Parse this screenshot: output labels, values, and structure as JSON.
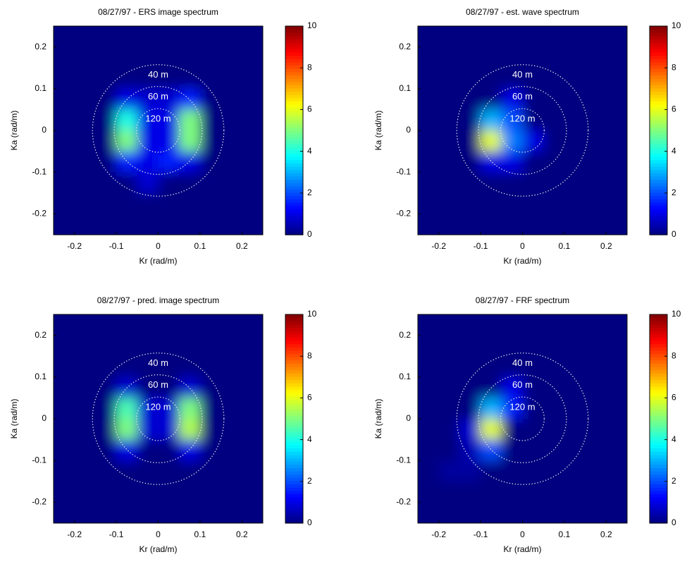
{
  "chart_data": [
    {
      "type": "heatmap",
      "title": "08/27/97 - ERS image spectrum",
      "xlabel": "Kr (rad/m)",
      "ylabel": "Ka (rad/m)",
      "xlim": [
        -0.25,
        0.25
      ],
      "ylim": [
        -0.25,
        0.25
      ],
      "xticks": [
        -0.2,
        -0.1,
        0,
        0.1,
        0.2
      ],
      "yticks": [
        -0.2,
        -0.1,
        0,
        0.1,
        0.2
      ],
      "zlim": [
        0,
        10
      ],
      "zticks": [
        0,
        2,
        4,
        6,
        8,
        10
      ],
      "colormap": "jet",
      "circles": [
        {
          "label": "40 m",
          "radius": 0.157
        },
        {
          "label": "60 m",
          "radius": 0.105
        },
        {
          "label": "120 m",
          "radius": 0.052
        }
      ],
      "z": [
        [
          0,
          0,
          0,
          0,
          0,
          0,
          0,
          0,
          0,
          0
        ],
        [
          0,
          0,
          0,
          0,
          0,
          0,
          0,
          0,
          0,
          0
        ],
        [
          0,
          0,
          0,
          0,
          0,
          0,
          0,
          0,
          0,
          0
        ],
        [
          0,
          0,
          0,
          1,
          0.8,
          0.8,
          1.5,
          0,
          0,
          0
        ],
        [
          0,
          0,
          0,
          4,
          1,
          1,
          5,
          0,
          0,
          0
        ],
        [
          0,
          0,
          0,
          5,
          1,
          1,
          5,
          0,
          0,
          0
        ],
        [
          0,
          0,
          0,
          1.5,
          1,
          1.5,
          1,
          0,
          0,
          0
        ],
        [
          0,
          0,
          0,
          0,
          0.8,
          0,
          0,
          0,
          0,
          0
        ],
        [
          0,
          0,
          0,
          0,
          0,
          0,
          0,
          0,
          0,
          0
        ],
        [
          0,
          0,
          0,
          0,
          0,
          0,
          0,
          0,
          0,
          0
        ]
      ]
    },
    {
      "type": "heatmap",
      "title": "08/27/97 - est. wave spectrum",
      "xlabel": "Kr (rad/m)",
      "ylabel": "Ka (rad/m)",
      "xlim": [
        -0.25,
        0.25
      ],
      "ylim": [
        -0.25,
        0.25
      ],
      "xticks": [
        -0.2,
        -0.1,
        0,
        0.1,
        0.2
      ],
      "yticks": [
        -0.2,
        -0.1,
        0,
        0.1,
        0.2
      ],
      "zlim": [
        0,
        10
      ],
      "zticks": [
        0,
        2,
        4,
        6,
        8,
        10
      ],
      "colormap": "jet",
      "circles": [
        {
          "label": "40 m",
          "radius": 0.157
        },
        {
          "label": "60 m",
          "radius": 0.105
        },
        {
          "label": "120 m",
          "radius": 0.052
        }
      ],
      "z": [
        [
          0,
          0,
          0,
          0,
          0,
          0,
          0,
          0,
          0,
          0
        ],
        [
          0,
          0,
          0,
          0,
          0,
          0,
          0,
          0,
          0,
          0
        ],
        [
          0,
          0,
          0,
          0,
          0,
          0,
          0,
          0,
          0,
          0
        ],
        [
          0,
          0,
          0,
          0,
          1,
          0,
          0,
          0,
          0,
          0
        ],
        [
          0,
          0,
          0,
          3,
          2,
          0,
          0,
          0,
          0,
          0
        ],
        [
          0,
          0,
          0,
          6,
          2.5,
          1,
          0,
          0,
          0,
          0
        ],
        [
          0,
          0,
          0,
          1,
          1,
          0,
          0,
          0,
          0,
          0
        ],
        [
          0,
          0,
          0,
          0,
          0,
          0,
          0,
          0,
          0,
          0
        ],
        [
          0,
          0,
          0,
          0,
          0,
          0,
          0,
          0,
          0,
          0
        ],
        [
          0,
          0,
          0,
          0,
          0,
          0,
          0,
          0,
          0,
          0
        ]
      ]
    },
    {
      "type": "heatmap",
      "title": "08/27/97 - pred. image spectrum",
      "xlabel": "Kr (rad/m)",
      "ylabel": "Ka (rad/m)",
      "xlim": [
        -0.25,
        0.25
      ],
      "ylim": [
        -0.25,
        0.25
      ],
      "xticks": [
        -0.2,
        -0.1,
        0,
        0.1,
        0.2
      ],
      "yticks": [
        -0.2,
        -0.1,
        0,
        0.1,
        0.2
      ],
      "zlim": [
        0,
        10
      ],
      "zticks": [
        0,
        2,
        4,
        6,
        8,
        10
      ],
      "colormap": "jet",
      "circles": [
        {
          "label": "40 m",
          "radius": 0.157
        },
        {
          "label": "60 m",
          "radius": 0.105
        },
        {
          "label": "120 m",
          "radius": 0.052
        }
      ],
      "z": [
        [
          0,
          0,
          0,
          0,
          0,
          0,
          0,
          0,
          0,
          0
        ],
        [
          0,
          0,
          0,
          0,
          0,
          0,
          0,
          0,
          0,
          0
        ],
        [
          0,
          0,
          0,
          0,
          0,
          0,
          0,
          0,
          0,
          0
        ],
        [
          0,
          0,
          0,
          0.8,
          0,
          0,
          0.8,
          0,
          0,
          0
        ],
        [
          0,
          0,
          0,
          4.5,
          0.8,
          0.8,
          5,
          0,
          0,
          0
        ],
        [
          0,
          0,
          0,
          5,
          0.8,
          0.8,
          5.5,
          0,
          0,
          0
        ],
        [
          0,
          0,
          0,
          1,
          0,
          0,
          1,
          0,
          0,
          0
        ],
        [
          0,
          0,
          0,
          0,
          0,
          0,
          0,
          0,
          0,
          0
        ],
        [
          0,
          0,
          0,
          0,
          0,
          0,
          0,
          0,
          0,
          0
        ],
        [
          0,
          0,
          0,
          0,
          0,
          0,
          0,
          0,
          0,
          0
        ]
      ]
    },
    {
      "type": "heatmap",
      "title": "08/27/97 - FRF spectrum",
      "xlabel": "Kr (rad/m)",
      "ylabel": "Ka (rad/m)",
      "xlim": [
        -0.25,
        0.25
      ],
      "ylim": [
        -0.25,
        0.25
      ],
      "xticks": [
        -0.2,
        -0.1,
        0,
        0.1,
        0.2
      ],
      "yticks": [
        -0.2,
        -0.1,
        0,
        0.1,
        0.2
      ],
      "zlim": [
        0,
        10
      ],
      "zticks": [
        0,
        2,
        4,
        6,
        8,
        10
      ],
      "colormap": "jet",
      "circles": [
        {
          "label": "40 m",
          "radius": 0.157
        },
        {
          "label": "60 m",
          "radius": 0.105
        },
        {
          "label": "120 m",
          "radius": 0.052
        }
      ],
      "z": [
        [
          0,
          0,
          0,
          0,
          0,
          0,
          0,
          0,
          0,
          0
        ],
        [
          0,
          0,
          0,
          0,
          0,
          0,
          0,
          0,
          0,
          0
        ],
        [
          0,
          0,
          0,
          0,
          0,
          0,
          0,
          0,
          0,
          0
        ],
        [
          0,
          0,
          0,
          0,
          1,
          0,
          0,
          0,
          0,
          0
        ],
        [
          0,
          0,
          0,
          3,
          1.5,
          0,
          0,
          0,
          0,
          0
        ],
        [
          0,
          0,
          0.8,
          6,
          0,
          0,
          0,
          0,
          0,
          0
        ],
        [
          0,
          0,
          0.5,
          2,
          0,
          0,
          0,
          0,
          0,
          0
        ],
        [
          0,
          0.3,
          0.3,
          0,
          0,
          0,
          0,
          0,
          0,
          0
        ],
        [
          0,
          0,
          0,
          0,
          0,
          0,
          0,
          0,
          0,
          0
        ],
        [
          0,
          0,
          0,
          0,
          0,
          0,
          0,
          0,
          0,
          0
        ]
      ]
    }
  ]
}
